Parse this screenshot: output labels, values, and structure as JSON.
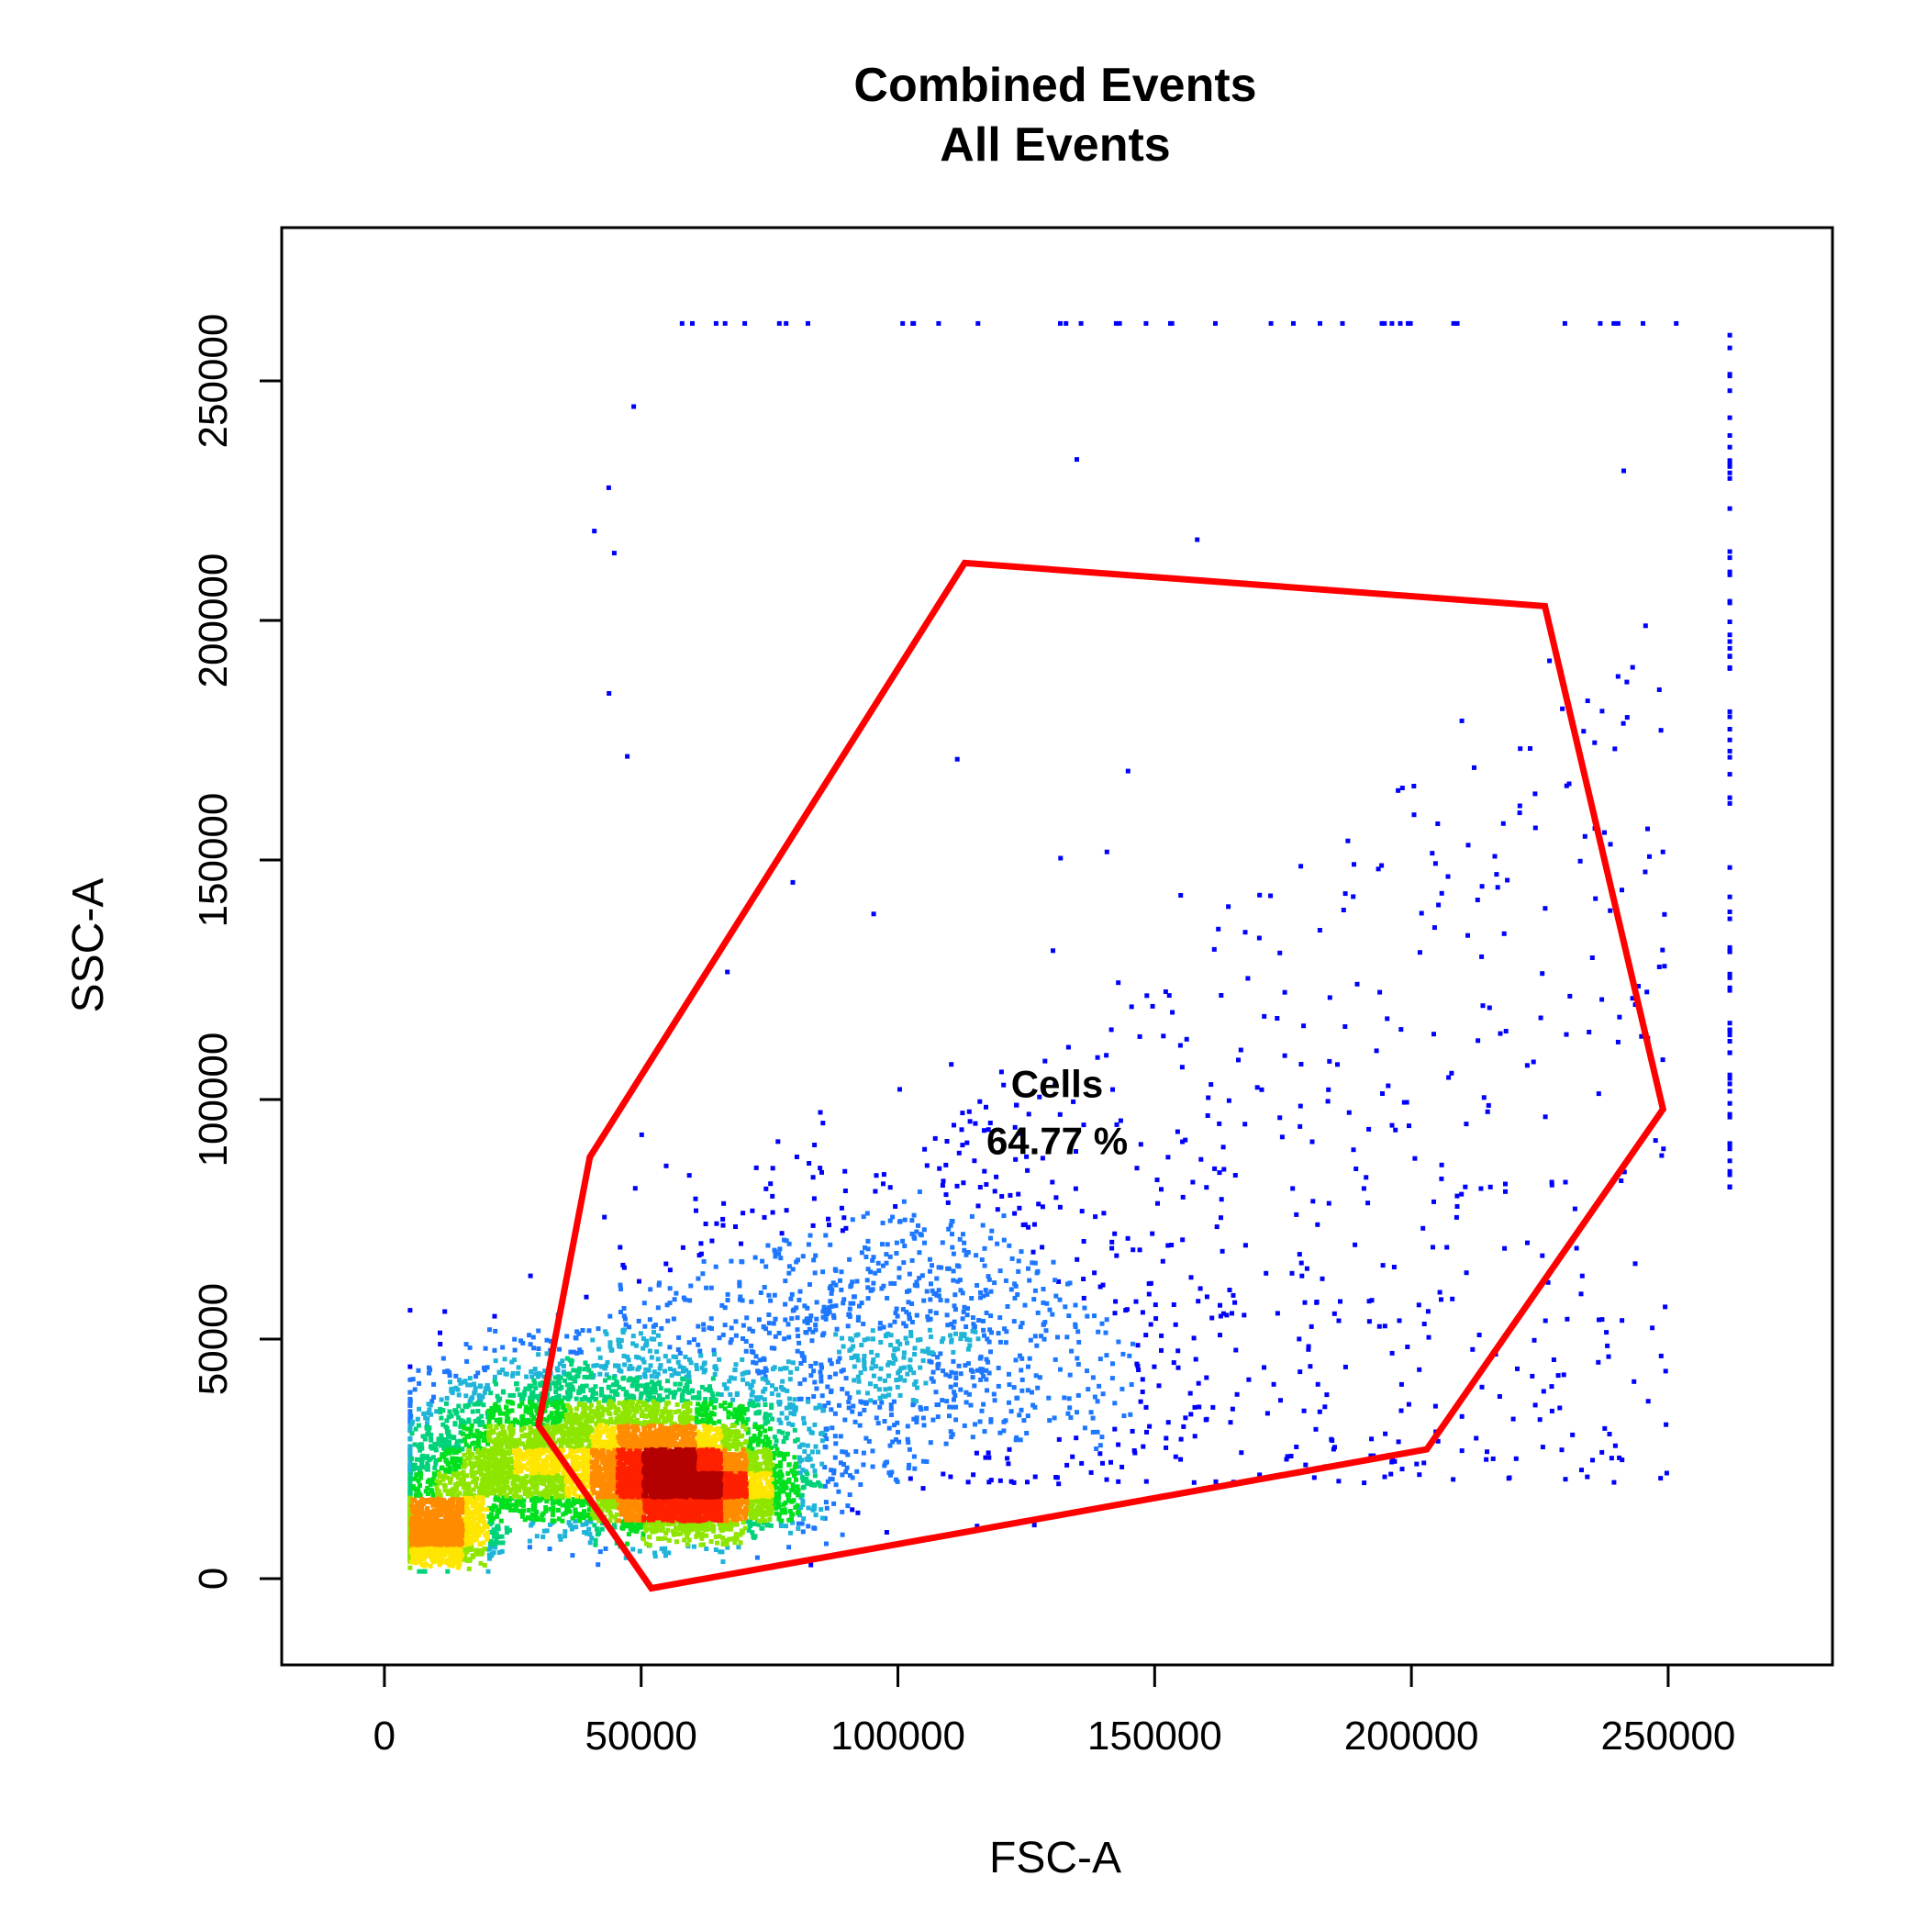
{
  "chart_data": {
    "type": "scatter",
    "title": "Combined Events",
    "subtitle": "All Events",
    "xlabel": "FSC-A",
    "ylabel": "SSC-A",
    "xlim": [
      -20000,
      282000
    ],
    "ylim": [
      -18000,
      282000
    ],
    "x_ticks": [
      {
        "value": 0,
        "label": "0"
      },
      {
        "value": 50000,
        "label": "50000"
      },
      {
        "value": 100000,
        "label": "100000"
      },
      {
        "value": 150000,
        "label": "150000"
      },
      {
        "value": 200000,
        "label": "200000"
      },
      {
        "value": 250000,
        "label": "250000"
      }
    ],
    "y_ticks": [
      {
        "value": 0,
        "label": "0"
      },
      {
        "value": 50000,
        "label": "50000"
      },
      {
        "value": 100000,
        "label": "100000"
      },
      {
        "value": 150000,
        "label": "150000"
      },
      {
        "value": 200000,
        "label": "200000"
      },
      {
        "value": 250000,
        "label": "250000"
      }
    ],
    "grid": false,
    "colormap": [
      "#0000ff",
      "#1e78ff",
      "#1fb4d8",
      "#00d27a",
      "#00e01e",
      "#8ee600",
      "#ffe600",
      "#ff8c00",
      "#ff2000",
      "#b40000"
    ],
    "density_clusters": [
      {
        "x": 60000,
        "y": 17000,
        "sx": 10000,
        "sy": 7000,
        "weight": 0.34
      },
      {
        "x": 48000,
        "y": 24000,
        "sx": 14000,
        "sy": 11000,
        "weight": 0.26
      },
      {
        "x": 10000,
        "y": 8000,
        "sx": 5000,
        "sy": 4000,
        "weight": 0.14
      },
      {
        "x": 22000,
        "y": 22000,
        "sx": 11000,
        "sy": 10000,
        "weight": 0.16
      },
      {
        "x": 100000,
        "y": 45000,
        "sx": 25000,
        "sy": 18000,
        "weight": 0.1
      }
    ],
    "sparse_region": {
      "x_range": [
        30000,
        250000
      ],
      "y_range": [
        20000,
        220000
      ]
    },
    "saturation_edges": {
      "x_max": 262000,
      "y_max": 262000
    },
    "gate": {
      "name": "Cells",
      "percent_label": "64.77 %",
      "label_position": {
        "x": 131000,
        "y": 97000
      },
      "color": "#ff0000",
      "vertices": [
        {
          "x": 113000,
          "y": 212000
        },
        {
          "x": 226000,
          "y": 203000
        },
        {
          "x": 249000,
          "y": 98000
        },
        {
          "x": 203000,
          "y": 27000
        },
        {
          "x": 52000,
          "y": -2000
        },
        {
          "x": 30000,
          "y": 32000
        },
        {
          "x": 40000,
          "y": 88000
        }
      ]
    }
  }
}
